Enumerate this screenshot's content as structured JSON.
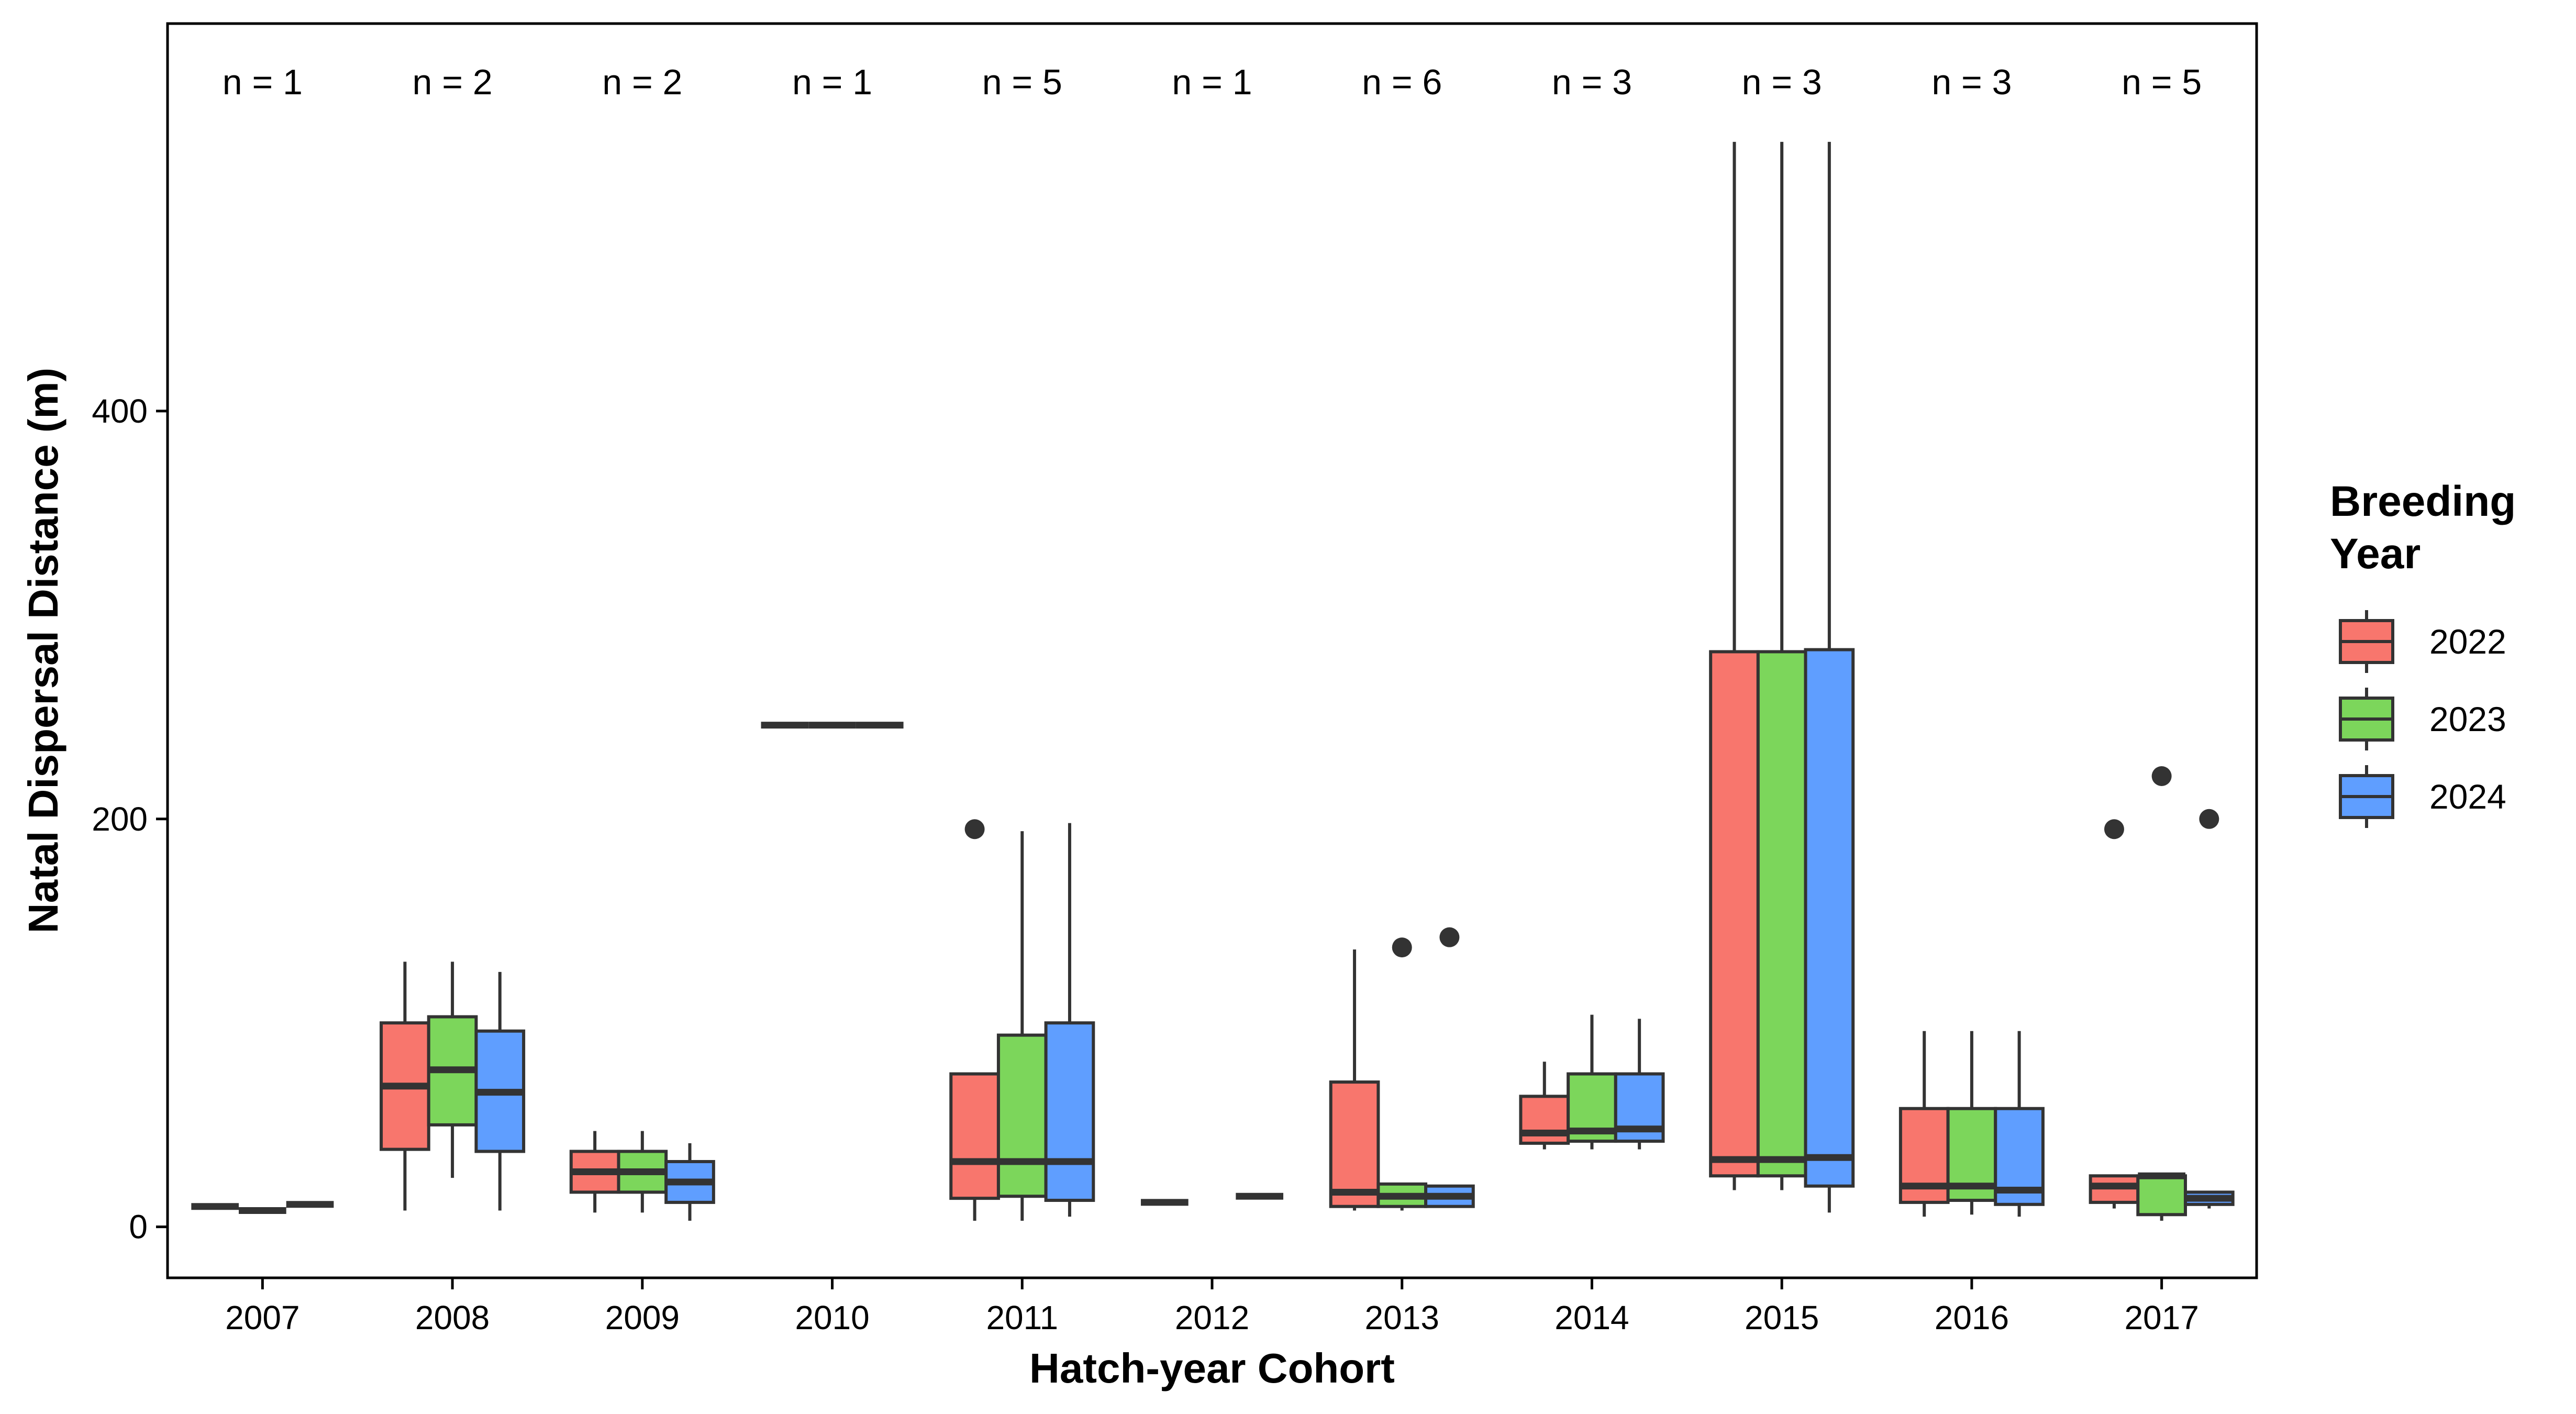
{
  "chart_data": {
    "type": "box",
    "title": "",
    "xlabel": "Hatch-year Cohort",
    "ylabel": "Natal Dispersal Distance (m)",
    "ylim": [
      -25,
      590
    ],
    "yticks": [
      0,
      200,
      400
    ],
    "grid": false,
    "legend": {
      "title_lines": [
        "Breeding",
        "Year"
      ],
      "placement": "right"
    },
    "categories": [
      "2007",
      "2008",
      "2009",
      "2010",
      "2011",
      "2012",
      "2013",
      "2014",
      "2015",
      "2016",
      "2017"
    ],
    "counts": [
      "n = 1",
      "n = 2",
      "n = 2",
      "n = 1",
      "n = 5",
      "n = 1",
      "n = 6",
      "n = 3",
      "n = 3",
      "n = 3",
      "n = 5"
    ],
    "series": [
      {
        "name": "2022",
        "color": "#F8766D",
        "boxes": [
          {
            "category": "2007",
            "min": 10,
            "q1": 10,
            "median": 10,
            "q3": 10,
            "max": 10,
            "outliers": []
          },
          {
            "category": "2008",
            "min": 8,
            "q1": 38,
            "median": 69,
            "q3": 100,
            "max": 130,
            "outliers": []
          },
          {
            "category": "2009",
            "min": 7,
            "q1": 17,
            "median": 27,
            "q3": 37,
            "max": 47,
            "outliers": []
          },
          {
            "category": "2010",
            "min": 246,
            "q1": 246,
            "median": 246,
            "q3": 246,
            "max": 246,
            "outliers": []
          },
          {
            "category": "2011",
            "min": 3,
            "q1": 14,
            "median": 32,
            "q3": 75,
            "max": 75,
            "outliers": [
              195
            ]
          },
          {
            "category": "2012",
            "min": 12,
            "q1": 12,
            "median": 12,
            "q3": 12,
            "max": 12,
            "outliers": []
          },
          {
            "category": "2013",
            "min": 8,
            "q1": 10,
            "median": 17,
            "q3": 71,
            "max": 136,
            "outliers": []
          },
          {
            "category": "2014",
            "min": 38,
            "q1": 41,
            "median": 46,
            "q3": 64,
            "max": 81,
            "outliers": []
          },
          {
            "category": "2015",
            "min": 18,
            "q1": 25,
            "median": 33,
            "q3": 282,
            "max": 532,
            "outliers": []
          },
          {
            "category": "2016",
            "min": 5,
            "q1": 12,
            "median": 20,
            "q3": 58,
            "max": 96,
            "outliers": []
          },
          {
            "category": "2017",
            "min": 9,
            "q1": 12,
            "median": 20,
            "q3": 25,
            "max": 25,
            "outliers": [
              195
            ]
          }
        ]
      },
      {
        "name": "2023",
        "color": "#7CD65B",
        "boxes": [
          {
            "category": "2007",
            "min": 8,
            "q1": 8,
            "median": 8,
            "q3": 8,
            "max": 8,
            "outliers": []
          },
          {
            "category": "2008",
            "min": 24,
            "q1": 50,
            "median": 77,
            "q3": 103,
            "max": 130,
            "outliers": []
          },
          {
            "category": "2009",
            "min": 7,
            "q1": 17,
            "median": 27,
            "q3": 37,
            "max": 47,
            "outliers": []
          },
          {
            "category": "2010",
            "min": 246,
            "q1": 246,
            "median": 246,
            "q3": 246,
            "max": 246,
            "outliers": []
          },
          {
            "category": "2011",
            "min": 3,
            "q1": 15,
            "median": 32,
            "q3": 94,
            "max": 194,
            "outliers": []
          },
          {
            "category": "2013",
            "min": 8,
            "q1": 10,
            "median": 15,
            "q3": 21,
            "max": 21,
            "outliers": [
              137
            ]
          },
          {
            "category": "2014",
            "min": 38,
            "q1": 42,
            "median": 47,
            "q3": 75,
            "max": 104,
            "outliers": []
          },
          {
            "category": "2015",
            "min": 18,
            "q1": 25,
            "median": 33,
            "q3": 282,
            "max": 532,
            "outliers": []
          },
          {
            "category": "2016",
            "min": 6,
            "q1": 13,
            "median": 20,
            "q3": 58,
            "max": 96,
            "outliers": []
          },
          {
            "category": "2017",
            "min": 3,
            "q1": 6,
            "median": 25,
            "q3": 25,
            "max": 25,
            "outliers": [
              221
            ]
          }
        ]
      },
      {
        "name": "2024",
        "color": "#5F9EFF",
        "boxes": [
          {
            "category": "2007",
            "min": 11,
            "q1": 11,
            "median": 11,
            "q3": 11,
            "max": 11,
            "outliers": []
          },
          {
            "category": "2008",
            "min": 8,
            "q1": 37,
            "median": 66,
            "q3": 96,
            "max": 125,
            "outliers": []
          },
          {
            "category": "2009",
            "min": 3,
            "q1": 12,
            "median": 22,
            "q3": 32,
            "max": 41,
            "outliers": []
          },
          {
            "category": "2010",
            "min": 246,
            "q1": 246,
            "median": 246,
            "q3": 246,
            "max": 246,
            "outliers": []
          },
          {
            "category": "2011",
            "min": 5,
            "q1": 13,
            "median": 32,
            "q3": 100,
            "max": 198,
            "outliers": []
          },
          {
            "category": "2012",
            "min": 15,
            "q1": 15,
            "median": 15,
            "q3": 15,
            "max": 15,
            "outliers": []
          },
          {
            "category": "2013",
            "min": 10,
            "q1": 10,
            "median": 15,
            "q3": 20,
            "max": 20,
            "outliers": [
              142
            ]
          },
          {
            "category": "2014",
            "min": 38,
            "q1": 42,
            "median": 48,
            "q3": 75,
            "max": 102,
            "outliers": []
          },
          {
            "category": "2015",
            "min": 7,
            "q1": 20,
            "median": 34,
            "q3": 283,
            "max": 532,
            "outliers": []
          },
          {
            "category": "2016",
            "min": 5,
            "q1": 11,
            "median": 18,
            "q3": 58,
            "max": 96,
            "outliers": []
          },
          {
            "category": "2017",
            "min": 9,
            "q1": 11,
            "median": 14,
            "q3": 17,
            "max": 17,
            "outliers": [
              200
            ]
          }
        ]
      }
    ]
  }
}
